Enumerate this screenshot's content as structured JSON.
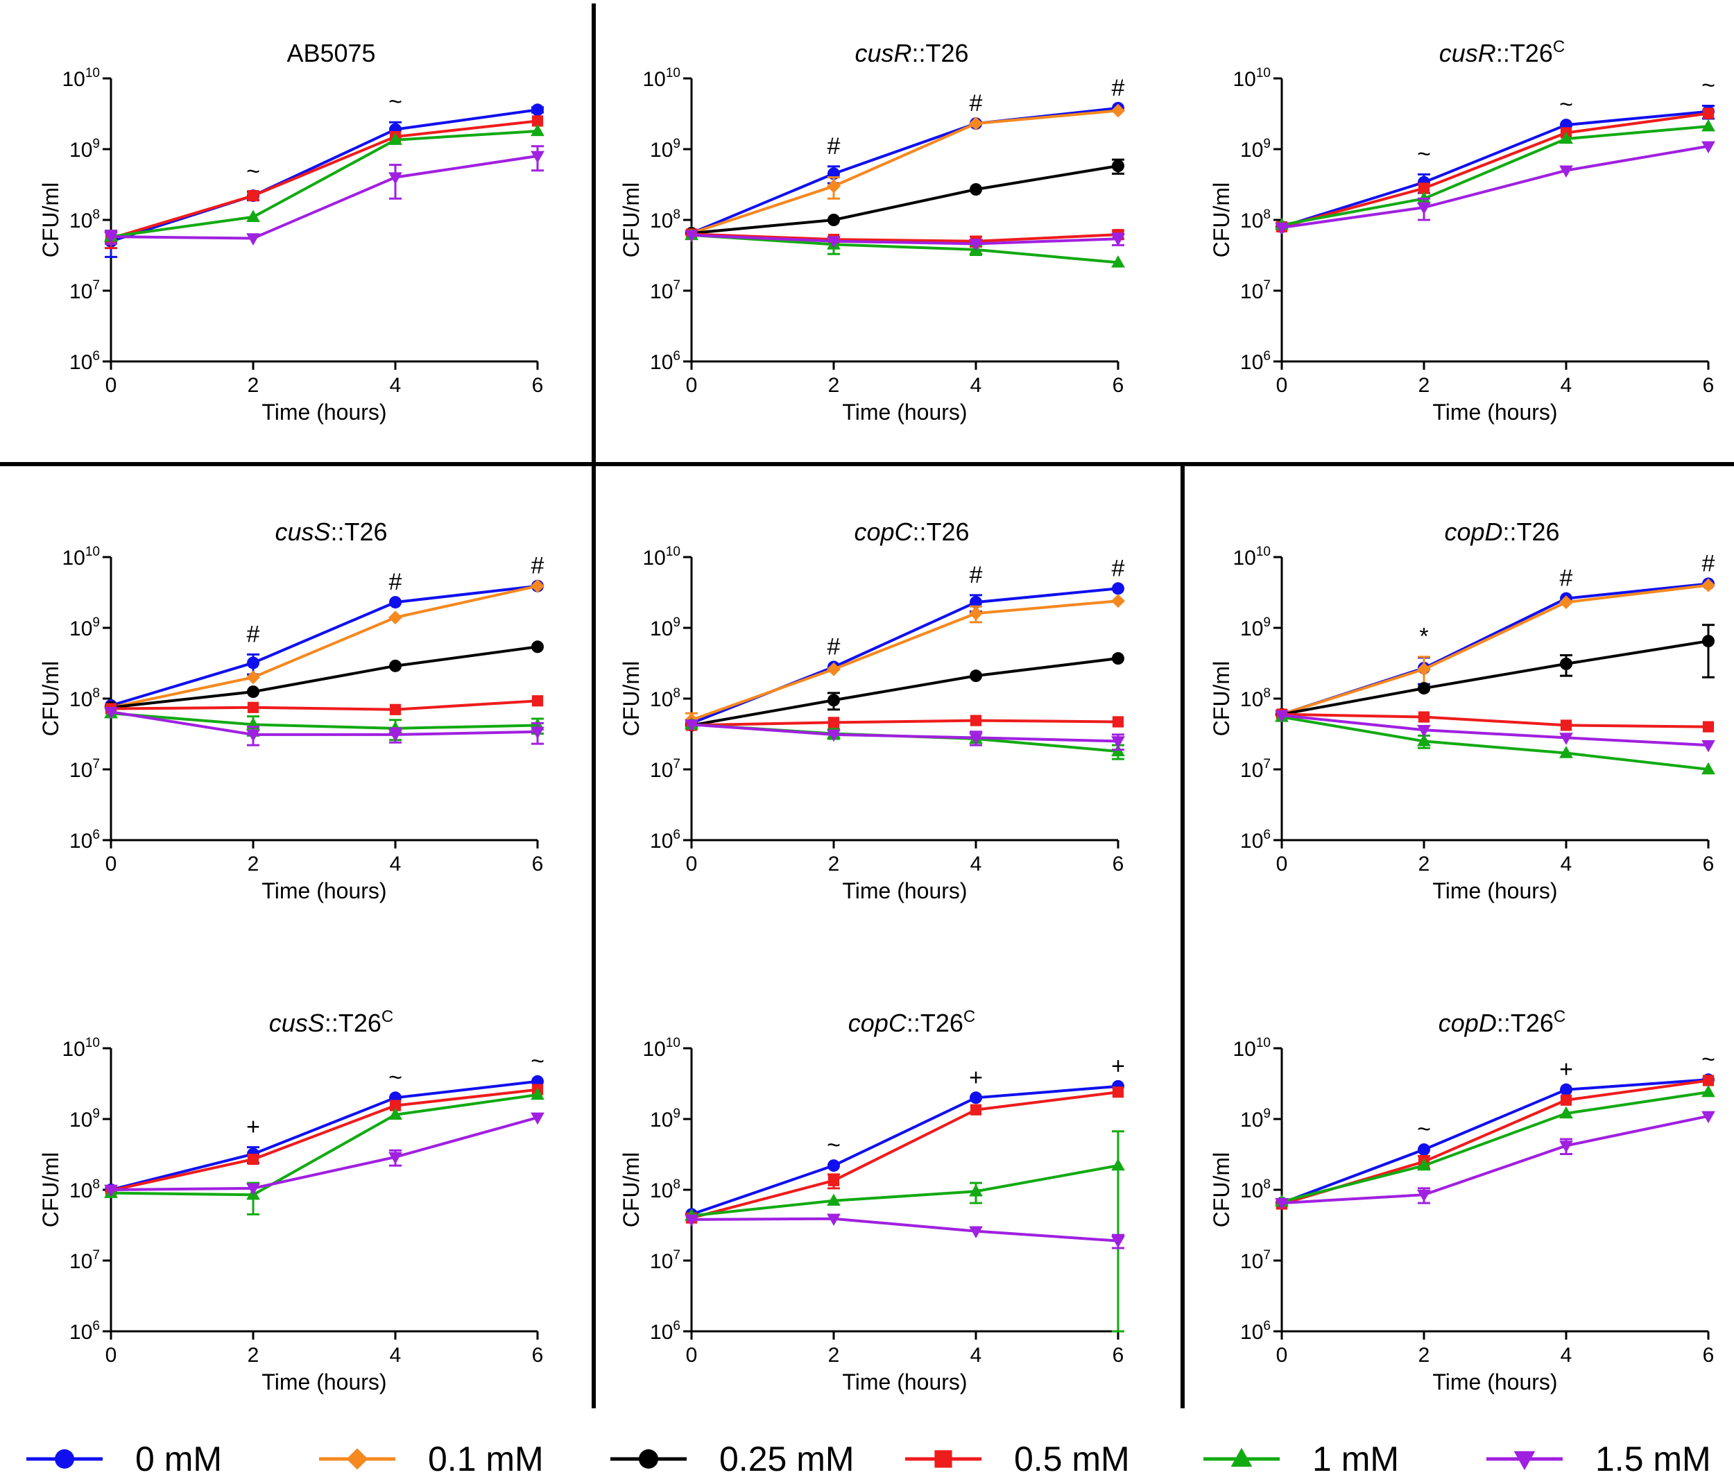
{
  "figure": {
    "xlabel": "Time (hours)",
    "ylabel": "CFU/ml",
    "x_ticks": [
      "0",
      "2",
      "4",
      "6"
    ],
    "y_tick_base": "10",
    "y_tick_exponents": [
      "6",
      "7",
      "8",
      "9",
      "10"
    ]
  },
  "legend": [
    {
      "key": "0mM",
      "label": "0 mM",
      "color": "#1010ee",
      "marker": "circle"
    },
    {
      "key": "0.1mM",
      "label": "0.1 mM",
      "color": "#f5881f",
      "marker": "diamond"
    },
    {
      "key": "0.25mM",
      "label": "0.25 mM",
      "color": "#000000",
      "marker": "circle"
    },
    {
      "key": "0.5mM",
      "label": "0.5 mM",
      "color": "#ee1c1c",
      "marker": "square"
    },
    {
      "key": "1mM",
      "label": "1 mM",
      "color": "#12aa12",
      "marker": "triangle-up"
    },
    {
      "key": "1.5mM",
      "label": "1.5 mM",
      "color": "#a020e0",
      "marker": "triangle-down"
    }
  ],
  "chart_data": [
    {
      "type": "line",
      "title": "AB5075",
      "title_italic": "",
      "title_rest": "AB5075",
      "title_sup": "",
      "xlabel": "Time (hours)",
      "ylabel": "CFU/ml",
      "yscale": "log",
      "ylim": [
        1000000.0,
        10000000000.0
      ],
      "x": [
        0,
        2,
        4,
        6
      ],
      "annotations": [
        "",
        "~",
        "~",
        ""
      ],
      "series": [
        {
          "key": "0mM",
          "values": [
            50000000.0,
            220000000.0,
            1900000000.0,
            3600000000.0
          ],
          "err": [
            20000000.0,
            30000000.0,
            500000000.0,
            300000000.0
          ]
        },
        {
          "key": "0.5mM",
          "values": [
            55000000.0,
            220000000.0,
            1500000000.0,
            2500000000.0
          ],
          "err": [
            15000000.0,
            0,
            0,
            0
          ]
        },
        {
          "key": "1mM",
          "values": [
            58000000.0,
            110000000.0,
            1350000000.0,
            1800000000.0
          ],
          "err": [
            12000000.0,
            0,
            0,
            0
          ]
        },
        {
          "key": "1.5mM",
          "values": [
            58000000.0,
            55000000.0,
            400000000.0,
            800000000.0
          ],
          "err": [
            12000000.0,
            0,
            200000000.0,
            300000000.0
          ]
        }
      ]
    },
    {
      "type": "line",
      "title": "cusR::T26",
      "title_italic": "cusR",
      "title_rest": "::T26",
      "title_sup": "",
      "xlabel": "Time (hours)",
      "ylabel": "CFU/ml",
      "yscale": "log",
      "ylim": [
        1000000.0,
        10000000000.0
      ],
      "x": [
        0,
        2,
        4,
        6
      ],
      "annotations": [
        "",
        "#",
        "#",
        "#"
      ],
      "series": [
        {
          "key": "0mM",
          "values": [
            65000000.0,
            450000000.0,
            2300000000.0,
            3800000000.0
          ],
          "err": [
            0,
            120000000.0,
            0,
            0
          ]
        },
        {
          "key": "0.1mM",
          "values": [
            65000000.0,
            300000000.0,
            2300000000.0,
            3500000000.0
          ],
          "err": [
            0,
            100000000.0,
            0,
            0
          ]
        },
        {
          "key": "0.25mM",
          "values": [
            65000000.0,
            100000000.0,
            270000000.0,
            580000000.0
          ],
          "err": [
            0,
            0,
            0,
            130000000.0
          ]
        },
        {
          "key": "0.5mM",
          "values": [
            63000000.0,
            53000000.0,
            50000000.0,
            62000000.0
          ],
          "err": [
            0,
            0,
            8000000.0,
            8000000.0
          ]
        },
        {
          "key": "1mM",
          "values": [
            61000000.0,
            45000000.0,
            38000000.0,
            25000000.0
          ],
          "err": [
            0,
            12000000.0,
            6000000.0,
            0
          ]
        },
        {
          "key": "1.5mM",
          "values": [
            61000000.0,
            50000000.0,
            46000000.0,
            54000000.0
          ],
          "err": [
            0,
            0,
            0,
            10000000.0
          ]
        }
      ]
    },
    {
      "type": "line",
      "title": "cusR::T26C",
      "title_italic": "cusR",
      "title_rest": "::T26",
      "title_sup": "C",
      "xlabel": "Time (hours)",
      "ylabel": "CFU/ml",
      "yscale": "log",
      "ylim": [
        1000000.0,
        10000000000.0
      ],
      "x": [
        0,
        2,
        4,
        6
      ],
      "annotations": [
        "",
        "~",
        "~",
        "~"
      ],
      "series": [
        {
          "key": "0mM",
          "values": [
            80000000.0,
            340000000.0,
            2200000000.0,
            3400000000.0
          ],
          "err": [
            0,
            100000000.0,
            0,
            700000000.0
          ]
        },
        {
          "key": "0.5mM",
          "values": [
            80000000.0,
            280000000.0,
            1700000000.0,
            3200000000.0
          ],
          "err": [
            0,
            0,
            0,
            0
          ]
        },
        {
          "key": "1mM",
          "values": [
            85000000.0,
            200000000.0,
            1400000000.0,
            2100000000.0
          ],
          "err": [
            0,
            0,
            0,
            0
          ]
        },
        {
          "key": "1.5mM",
          "values": [
            78000000.0,
            150000000.0,
            500000000.0,
            1100000000.0
          ],
          "err": [
            0,
            50000000.0,
            0,
            0
          ]
        }
      ]
    },
    {
      "type": "line",
      "title": "cusS::T26",
      "title_italic": "cusS",
      "title_rest": "::T26",
      "title_sup": "",
      "xlabel": "Time (hours)",
      "ylabel": "CFU/ml",
      "yscale": "log",
      "ylim": [
        1000000.0,
        10000000000.0
      ],
      "x": [
        0,
        2,
        4,
        6
      ],
      "annotations": [
        "",
        "#",
        "#",
        "#"
      ],
      "series": [
        {
          "key": "0mM",
          "values": [
            80000000.0,
            320000000.0,
            2300000000.0,
            3900000000.0
          ],
          "err": [
            0,
            100000000.0,
            0,
            0
          ]
        },
        {
          "key": "0.1mM",
          "values": [
            75000000.0,
            200000000.0,
            1400000000.0,
            3900000000.0
          ],
          "err": [
            0,
            0,
            0,
            0
          ]
        },
        {
          "key": "0.25mM",
          "values": [
            75000000.0,
            125000000.0,
            290000000.0,
            540000000.0
          ],
          "err": [
            0,
            0,
            0,
            0
          ]
        },
        {
          "key": "0.5mM",
          "values": [
            72000000.0,
            75000000.0,
            70000000.0,
            93000000.0
          ],
          "err": [
            0,
            0,
            0,
            0
          ]
        },
        {
          "key": "1mM",
          "values": [
            62000000.0,
            43000000.0,
            38000000.0,
            42000000.0
          ],
          "err": [
            0,
            13000000.0,
            12000000.0,
            10000000.0
          ]
        },
        {
          "key": "1.5mM",
          "values": [
            65000000.0,
            31000000.0,
            31000000.0,
            34000000.0
          ],
          "err": [
            0,
            9000000.0,
            7000000.0,
            11000000.0
          ]
        }
      ]
    },
    {
      "type": "line",
      "title": "copC::T26",
      "title_italic": "copC",
      "title_rest": "::T26",
      "title_sup": "",
      "xlabel": "Time (hours)",
      "ylabel": "CFU/ml",
      "yscale": "log",
      "ylim": [
        1000000.0,
        10000000000.0
      ],
      "x": [
        0,
        2,
        4,
        6
      ],
      "annotations": [
        "",
        "#",
        "#",
        "#"
      ],
      "series": [
        {
          "key": "0mM",
          "values": [
            45000000.0,
            280000000.0,
            2300000000.0,
            3600000000.0
          ],
          "err": [
            0,
            0,
            600000000.0,
            0
          ]
        },
        {
          "key": "0.1mM",
          "values": [
            50000000.0,
            260000000.0,
            1600000000.0,
            2400000000.0
          ],
          "err": [
            12000000.0,
            0,
            400000000.0,
            0
          ]
        },
        {
          "key": "0.25mM",
          "values": [
            42000000.0,
            95000000.0,
            210000000.0,
            370000000.0
          ],
          "err": [
            0,
            25000000.0,
            0,
            0
          ]
        },
        {
          "key": "0.5mM",
          "values": [
            42000000.0,
            46000000.0,
            49000000.0,
            47000000.0
          ],
          "err": [
            0,
            0,
            0,
            0
          ]
        },
        {
          "key": "1mM",
          "values": [
            43000000.0,
            32000000.0,
            27000000.0,
            18000000.0
          ],
          "err": [
            0,
            5000000.0,
            0,
            4000000.0
          ]
        },
        {
          "key": "1.5mM",
          "values": [
            43000000.0,
            31000000.0,
            28000000.0,
            25000000.0
          ],
          "err": [
            0,
            0,
            6000000.0,
            6000000.0
          ]
        }
      ]
    },
    {
      "type": "line",
      "title": "copD::T26",
      "title_italic": "copD",
      "title_rest": "::T26",
      "title_sup": "",
      "xlabel": "Time (hours)",
      "ylabel": "CFU/ml",
      "yscale": "log",
      "ylim": [
        1000000.0,
        10000000000.0
      ],
      "x": [
        0,
        2,
        4,
        6
      ],
      "annotations": [
        "",
        "*",
        "#",
        "#"
      ],
      "series": [
        {
          "key": "0mM",
          "values": [
            60000000.0,
            270000000.0,
            2600000000.0,
            4200000000.0
          ],
          "err": [
            0,
            110000000.0,
            0,
            0
          ]
        },
        {
          "key": "0.1mM",
          "values": [
            60000000.0,
            260000000.0,
            2300000000.0,
            4000000000.0
          ],
          "err": [
            0,
            130000000.0,
            0,
            0
          ]
        },
        {
          "key": "0.25mM",
          "values": [
            60000000.0,
            140000000.0,
            310000000.0,
            650000000.0
          ],
          "err": [
            0,
            0,
            100000000.0,
            450000000.0
          ]
        },
        {
          "key": "0.5mM",
          "values": [
            60000000.0,
            55000000.0,
            42000000.0,
            40000000.0
          ],
          "err": [
            0,
            0,
            0,
            0
          ]
        },
        {
          "key": "1mM",
          "values": [
            55000000.0,
            25000000.0,
            17000000.0,
            10000000.0
          ],
          "err": [
            0,
            5000000.0,
            0,
            0
          ]
        },
        {
          "key": "1.5mM",
          "values": [
            58000000.0,
            36000000.0,
            28000000.0,
            22000000.0
          ],
          "err": [
            0,
            0,
            0,
            0
          ]
        }
      ]
    },
    {
      "type": "line",
      "title": "cusS::T26C",
      "title_italic": "cusS",
      "title_rest": "::T26",
      "title_sup": "C",
      "xlabel": "Time (hours)",
      "ylabel": "CFU/ml",
      "yscale": "log",
      "ylim": [
        1000000.0,
        10000000000.0
      ],
      "x": [
        0,
        2,
        4,
        6
      ],
      "annotations": [
        "",
        "+",
        "~",
        "~"
      ],
      "series": [
        {
          "key": "0mM",
          "values": [
            100000000.0,
            320000000.0,
            2000000000.0,
            3400000000.0
          ],
          "err": [
            0,
            80000000.0,
            0,
            0
          ]
        },
        {
          "key": "0.5mM",
          "values": [
            98000000.0,
            270000000.0,
            1550000000.0,
            2600000000.0
          ],
          "err": [
            0,
            0,
            0,
            0
          ]
        },
        {
          "key": "1mM",
          "values": [
            90000000.0,
            85000000.0,
            1150000000.0,
            2200000000.0
          ],
          "err": [
            0,
            40000000.0,
            0,
            0
          ]
        },
        {
          "key": "1.5mM",
          "values": [
            100000000.0,
            105000000.0,
            290000000.0,
            1050000000.0
          ],
          "err": [
            0,
            0,
            70000000.0,
            0
          ]
        }
      ]
    },
    {
      "type": "line",
      "title": "copC::T26C",
      "title_italic": "copC",
      "title_rest": "::T26",
      "title_sup": "C",
      "xlabel": "Time (hours)",
      "ylabel": "CFU/ml",
      "yscale": "log",
      "ylim": [
        1000000.0,
        10000000000.0
      ],
      "x": [
        0,
        2,
        4,
        6
      ],
      "annotations": [
        "",
        "~",
        "+",
        "+"
      ],
      "series": [
        {
          "key": "0mM",
          "values": [
            45000000.0,
            220000000.0,
            2000000000.0,
            2900000000.0
          ],
          "err": [
            0,
            0,
            0,
            0
          ]
        },
        {
          "key": "0.5mM",
          "values": [
            40000000.0,
            135000000.0,
            1350000000.0,
            2400000000.0
          ],
          "err": [
            0,
            30000000.0,
            0,
            0
          ]
        },
        {
          "key": "1mM",
          "values": [
            43000000.0,
            70000000.0,
            95000000.0,
            220000000.0
          ],
          "err": [
            0,
            0,
            30000000.0,
            450000000.0
          ]
        },
        {
          "key": "1.5mM",
          "values": [
            38000000.0,
            39000000.0,
            26000000.0,
            19000000.0
          ],
          "err": [
            0,
            0,
            0,
            4000000.0
          ]
        }
      ]
    },
    {
      "type": "line",
      "title": "copD::T26C",
      "title_italic": "copD",
      "title_rest": "::T26",
      "title_sup": "C",
      "xlabel": "Time (hours)",
      "ylabel": "CFU/ml",
      "yscale": "log",
      "ylim": [
        1000000.0,
        10000000000.0
      ],
      "x": [
        0,
        2,
        4,
        6
      ],
      "annotations": [
        "",
        "~",
        "+",
        "~"
      ],
      "series": [
        {
          "key": "0mM",
          "values": [
            65000000.0,
            370000000.0,
            2600000000.0,
            3600000000.0
          ],
          "err": [
            0,
            0,
            0,
            0
          ]
        },
        {
          "key": "0.5mM",
          "values": [
            63000000.0,
            250000000.0,
            1850000000.0,
            3500000000.0
          ],
          "err": [
            0,
            50000000.0,
            0,
            0
          ]
        },
        {
          "key": "1mM",
          "values": [
            68000000.0,
            220000000.0,
            1200000000.0,
            2400000000.0
          ],
          "err": [
            0,
            0,
            0,
            0
          ]
        },
        {
          "key": "1.5mM",
          "values": [
            65000000.0,
            85000000.0,
            420000000.0,
            1100000000.0
          ],
          "err": [
            0,
            20000000.0,
            100000000.0,
            0
          ]
        }
      ]
    }
  ]
}
